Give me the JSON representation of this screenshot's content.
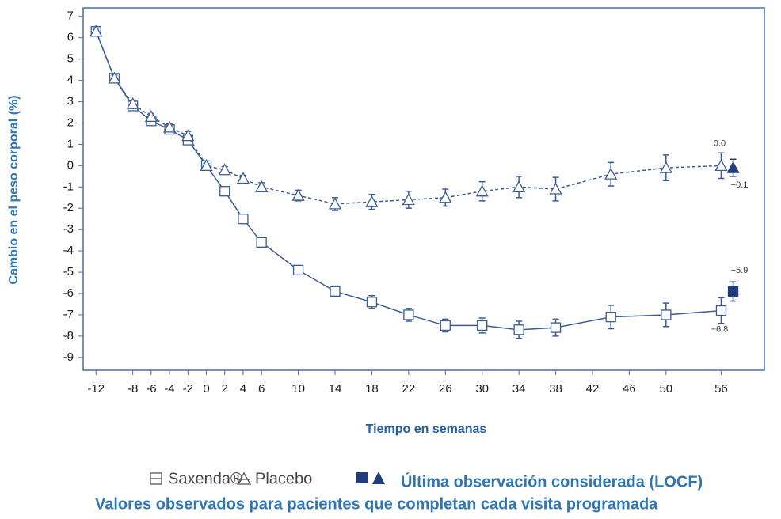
{
  "chart_data": {
    "type": "line",
    "ylabel": "Cambio en el peso corporal (%)",
    "xlabel": "Tiempo en semanas",
    "xlim": [
      -13.4,
      60.7
    ],
    "ylim": [
      -9.6,
      7.4
    ],
    "xticks": [
      -12,
      -8,
      -6,
      -4,
      -2,
      0,
      2,
      4,
      6,
      10,
      14,
      18,
      22,
      26,
      30,
      34,
      38,
      42,
      46,
      50,
      56
    ],
    "yticks": [
      7,
      6,
      5,
      4,
      3,
      2,
      1,
      0,
      -1,
      -2,
      -3,
      -4,
      -5,
      -6,
      -7,
      -8,
      -9
    ],
    "x": [
      -12,
      -10,
      -8,
      -6,
      -4,
      -2,
      0,
      2,
      4,
      6,
      10,
      14,
      18,
      22,
      26,
      30,
      34,
      38,
      44,
      50,
      56
    ],
    "series": [
      {
        "name": "Saxenda®",
        "color": "#3b5a96",
        "marker": "square",
        "values": [
          6.3,
          4.1,
          2.8,
          2.1,
          1.7,
          1.2,
          0,
          -1.2,
          -2.5,
          -3.6,
          -4.9,
          -5.9,
          -6.4,
          -7.0,
          -7.5,
          -7.5,
          -7.7,
          -7.6,
          -7.1,
          -7.0,
          -6.8
        ],
        "errors": [
          0.15,
          0.15,
          0.15,
          0.15,
          0.15,
          0.15,
          0.1,
          0.15,
          0.15,
          0.2,
          0.2,
          0.25,
          0.3,
          0.3,
          0.3,
          0.35,
          0.4,
          0.4,
          0.55,
          0.55,
          0.6
        ],
        "value_labels": [
          null,
          null,
          null,
          null,
          null,
          null,
          null,
          null,
          null,
          null,
          null,
          null,
          null,
          null,
          null,
          null,
          null,
          null,
          null,
          null,
          "−6.8"
        ]
      },
      {
        "name": "Placebo",
        "color": "#3b5a96",
        "marker": "triangle",
        "dashed": true,
        "values": [
          6.3,
          4.1,
          2.9,
          2.3,
          1.8,
          1.4,
          0,
          -0.2,
          -0.6,
          -1.0,
          -1.4,
          -1.8,
          -1.7,
          -1.6,
          -1.5,
          -1.2,
          -1.0,
          -1.1,
          -0.4,
          -0.1,
          0.0
        ],
        "errors": [
          0.15,
          0.15,
          0.15,
          0.15,
          0.15,
          0.2,
          0.1,
          0.15,
          0.15,
          0.2,
          0.25,
          0.3,
          0.35,
          0.4,
          0.4,
          0.45,
          0.5,
          0.55,
          0.55,
          0.6,
          0.6
        ],
        "value_labels": [
          null,
          null,
          null,
          null,
          null,
          null,
          null,
          null,
          null,
          null,
          null,
          null,
          null,
          null,
          null,
          null,
          null,
          null,
          null,
          null,
          "0.0"
        ]
      }
    ],
    "locf": {
      "name": "Última observación considerada (LOCF)",
      "color": "#1f3d7a",
      "x": 57.3,
      "values": [
        -5.9,
        -0.1
      ],
      "errors": [
        0.45,
        0.4
      ],
      "value_labels": [
        "−5.9",
        "−0.1"
      ]
    },
    "note": "Valores observados para pacientes que completan cada visita programada"
  }
}
